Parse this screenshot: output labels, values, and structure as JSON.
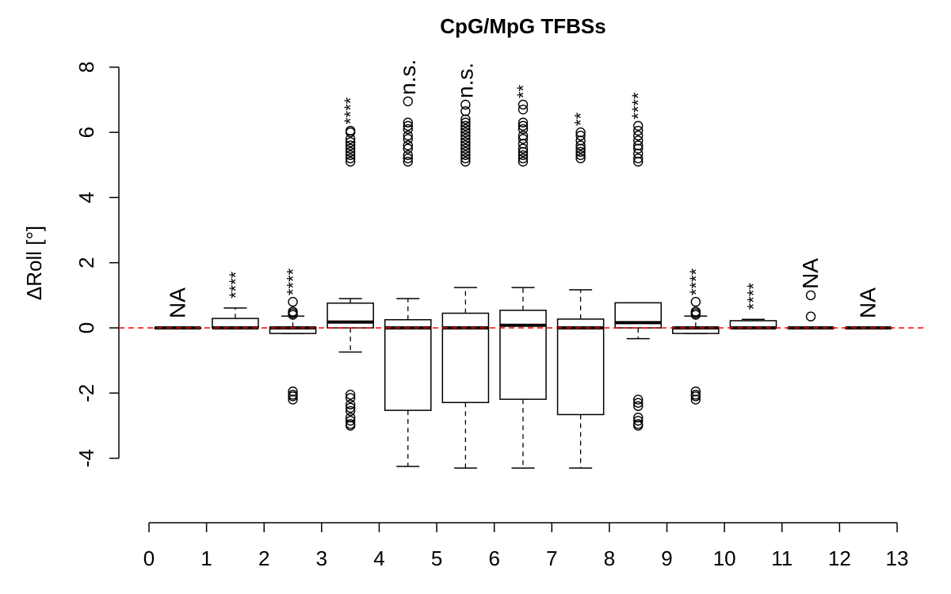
{
  "chart_data": {
    "type": "boxplot",
    "title": "CpG/MpG TFBSs",
    "xlabel": "",
    "ylabel": "ΔRoll [°]",
    "xlim": [
      0,
      13
    ],
    "ylim": [
      -4,
      8
    ],
    "x_ticks": [
      "0",
      "1",
      "2",
      "3",
      "4",
      "5",
      "6",
      "7",
      "8",
      "9",
      "10",
      "11",
      "12",
      "13"
    ],
    "y_ticks": [
      "-4",
      "-2",
      "0",
      "2",
      "4",
      "6",
      "8"
    ],
    "y_tick_values": [
      -4,
      -2,
      0,
      2,
      4,
      6,
      8
    ],
    "reference_line": {
      "y": 0,
      "color": "#ff0000",
      "style": "dashed"
    },
    "groups": [
      {
        "x": 0.5,
        "whisker_low": 0,
        "q1": 0,
        "median": 0,
        "q3": 0,
        "whisker_high": 0,
        "outliers": [],
        "annotation": "NA"
      },
      {
        "x": 1.5,
        "whisker_low": 0,
        "q1": 0,
        "median": 0,
        "q3": 0.29,
        "whisker_high": 0.61,
        "outliers": [],
        "annotation": "****"
      },
      {
        "x": 2.5,
        "whisker_low": -0.17,
        "q1": -0.17,
        "median": 0,
        "q3": 0.02,
        "whisker_high": 0.36,
        "outliers": [
          0.4,
          0.45,
          0.5,
          0.8,
          -1.95,
          -2.05,
          -2.1,
          -2.2
        ],
        "annotation": "****"
      },
      {
        "x": 3.5,
        "whisker_low": -0.74,
        "q1": 0,
        "median": 0.18,
        "q3": 0.76,
        "whisker_high": 0.9,
        "outliers": [
          -2.05,
          -2.15,
          -2.35,
          -2.45,
          -2.55,
          -2.75,
          -2.85,
          -2.95,
          -3.0,
          5.1,
          5.2,
          5.3,
          5.4,
          5.5,
          5.6,
          5.7,
          5.8,
          6.0,
          6.05
        ],
        "annotation": "****"
      },
      {
        "x": 4.5,
        "whisker_low": -4.25,
        "q1": -2.53,
        "median": 0,
        "q3": 0.25,
        "whisker_high": 0.9,
        "outliers": [
          5.1,
          5.2,
          5.3,
          5.5,
          5.6,
          5.8,
          5.9,
          6.1,
          6.2,
          6.3,
          6.95
        ],
        "annotation": "n.s."
      },
      {
        "x": 5.5,
        "whisker_low": -4.3,
        "q1": -2.29,
        "median": 0,
        "q3": 0.45,
        "whisker_high": 1.24,
        "outliers": [
          5.1,
          5.2,
          5.3,
          5.4,
          5.5,
          5.6,
          5.7,
          5.8,
          5.9,
          6.0,
          6.1,
          6.2,
          6.3,
          6.4,
          6.65,
          6.85
        ],
        "annotation": "n.s."
      },
      {
        "x": 6.5,
        "whisker_low": -4.3,
        "q1": -2.19,
        "median": 0.08,
        "q3": 0.54,
        "whisker_high": 1.24,
        "outliers": [
          5.1,
          5.2,
          5.3,
          5.4,
          5.5,
          5.65,
          5.8,
          5.9,
          6.1,
          6.2,
          6.3,
          6.7,
          6.85
        ],
        "annotation": "**"
      },
      {
        "x": 7.5,
        "whisker_low": -4.3,
        "q1": -2.66,
        "median": 0,
        "q3": 0.27,
        "whisker_high": 1.17,
        "outliers": [
          5.2,
          5.3,
          5.4,
          5.5,
          5.6,
          5.75,
          5.9,
          6.0
        ],
        "annotation": "**"
      },
      {
        "x": 8.5,
        "whisker_low": -0.33,
        "q1": 0,
        "median": 0.16,
        "q3": 0.77,
        "whisker_high": 0.77,
        "outliers": [
          -2.2,
          -2.3,
          -2.4,
          -2.75,
          -2.85,
          -2.95,
          -3.0,
          5.1,
          5.2,
          5.35,
          5.5,
          5.6,
          5.75,
          5.9,
          6.05,
          6.2
        ],
        "annotation": "****"
      },
      {
        "x": 9.5,
        "whisker_low": -0.17,
        "q1": -0.17,
        "median": 0,
        "q3": 0.02,
        "whisker_high": 0.36,
        "outliers": [
          0.4,
          0.45,
          0.5,
          0.8,
          -1.95,
          -2.05,
          -2.1,
          -2.2
        ],
        "annotation": "****"
      },
      {
        "x": 10.5,
        "whisker_low": 0,
        "q1": 0,
        "median": 0,
        "q3": 0.22,
        "whisker_high": 0.26,
        "outliers": [],
        "annotation": "****"
      },
      {
        "x": 11.5,
        "whisker_low": 0,
        "q1": 0,
        "median": 0,
        "q3": 0,
        "whisker_high": 0,
        "outliers": [
          0.35,
          1.0
        ],
        "annotation": "NA"
      },
      {
        "x": 12.5,
        "whisker_low": 0,
        "q1": 0,
        "median": 0,
        "q3": 0,
        "whisker_high": 0,
        "outliers": [],
        "annotation": "NA"
      }
    ]
  }
}
